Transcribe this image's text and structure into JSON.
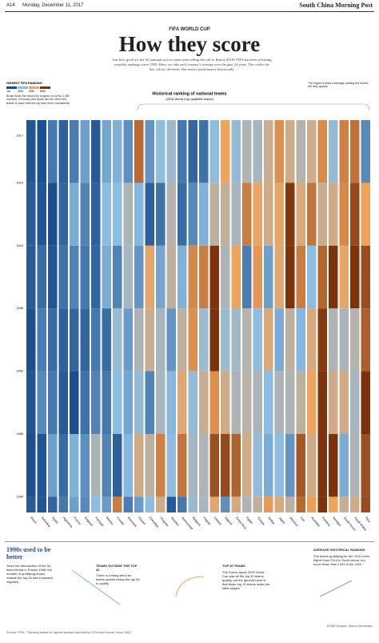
{
  "header": {
    "page": "A14",
    "date": "Monday, December 11, 2017",
    "paper": "South China Morning Post"
  },
  "kicker": "FIFA WORLD CUP",
  "headline": "How they score",
  "intro": "Just how good are the 32 national soccer teams unravelling the call to Russia 2018? FIFA has been releasing monthly rankings since 1993. Here, we take each country's average over the past 24 years. The cooler the box colour, the better that team's performance historically.",
  "chart_data": {
    "type": "heatmap",
    "title": "Historical ranking of national teams",
    "subtitle": "(2018 World Cup qualified teams)",
    "legend": {
      "title": "HIGHEST FIFA RANKING",
      "ticks": [
        {
          "value": 1,
          "label": "1st"
        },
        {
          "value": 20,
          "label": "20th"
        },
        {
          "value": 50,
          "label": "50th"
        },
        {
          "value": 80,
          "label": "80th"
        }
      ],
      "colors": [
        "#1b4f8f",
        "#8dbde2",
        "#f0a35a",
        "#7e320c"
      ]
    },
    "legend_note": "Brazil holds the record for longest run at No 1 (86 months). Germany and Spain are the other two teams to have held the top spot more consistently",
    "order_note": "The higher a team's average ranking the further left they appear",
    "categories": [
      2017,
      2014,
      2010,
      2006,
      2002,
      1998,
      1994
    ],
    "ylim": [
      2018,
      1993
    ],
    "series": [
      {
        "name": "Brazil",
        "values": [
          2,
          3,
          3,
          1,
          2,
          1,
          3
        ]
      },
      {
        "name": "Germany",
        "values": [
          1,
          2,
          6,
          9,
          11,
          2,
          2
        ]
      },
      {
        "name": "Spain",
        "values": [
          8,
          1,
          2,
          6,
          8,
          15,
          5
        ]
      },
      {
        "name": "Argentina",
        "values": [
          4,
          5,
          7,
          4,
          3,
          6,
          8
        ]
      },
      {
        "name": "France",
        "values": [
          9,
          17,
          10,
          5,
          1,
          18,
          15
        ]
      },
      {
        "name": "England",
        "values": [
          15,
          10,
          8,
          5,
          7,
          12,
          11
        ]
      },
      {
        "name": "Portugal",
        "values": [
          3,
          4,
          5,
          8,
          10,
          30,
          20
        ]
      },
      {
        "name": "Mexico",
        "values": [
          16,
          20,
          17,
          6,
          8,
          10,
          14
        ]
      },
      {
        "name": "Croatia",
        "values": [
          18,
          20,
          10,
          24,
          20,
          4,
          60
        ]
      },
      {
        "name": "Denmark",
        "values": [
          12,
          30,
          27,
          14,
          16,
          19,
          9
        ]
      },
      {
        "name": "Russia",
        "values": [
          65,
          19,
          13,
          30,
          23,
          40,
          14
        ]
      },
      {
        "name": "Colombia",
        "values": [
          13,
          4,
          46,
          38,
          10,
          34,
          21
        ]
      },
      {
        "name": "Uruguay",
        "values": [
          21,
          7,
          16,
          28,
          28,
          59,
          40
        ]
      },
      {
        "name": "Sweden",
        "values": [
          25,
          32,
          35,
          13,
          19,
          21,
          3
        ]
      },
      {
        "name": "Switzerland",
        "values": [
          8,
          6,
          18,
          35,
          45,
          62,
          8
        ]
      },
      {
        "name": "Belgium",
        "values": [
          5,
          11,
          57,
          55,
          22,
          27,
          24
        ]
      },
      {
        "name": "Poland",
        "values": [
          7,
          18,
          60,
          24,
          38,
          30,
          28
        ]
      },
      {
        "name": "Iceland",
        "values": [
          21,
          35,
          112,
          95,
          55,
          72,
          45
        ]
      },
      {
        "name": "Nigeria",
        "values": [
          50,
          36,
          30,
          24,
          40,
          74,
          12
        ]
      },
      {
        "name": "Costa Rica",
        "values": [
          23,
          28,
          50,
          26,
          30,
          67,
          42
        ]
      },
      {
        "name": "Egypt",
        "values": [
          30,
          60,
          9,
          32,
          33,
          40,
          30
        ]
      },
      {
        "name": "Tunisia",
        "values": [
          28,
          48,
          53,
          21,
          29,
          22,
          35
        ]
      },
      {
        "name": "Serbia",
        "values": [
          38,
          40,
          15,
          43,
          20,
          17,
          52
        ]
      },
      {
        "name": "Japan",
        "values": [
          55,
          47,
          45,
          17,
          30,
          20,
          43
        ]
      },
      {
        "name": "Morocco",
        "values": [
          40,
          79,
          80,
          35,
          30,
          13,
          34
        ]
      },
      {
        "name": "Iran",
        "values": [
          32,
          43,
          60,
          19,
          35,
          70,
          65
        ]
      },
      {
        "name": "Australia",
        "values": [
          39,
          62,
          20,
          42,
          50,
          40,
          51
        ]
      },
      {
        "name": "Panama",
        "values": [
          56,
          38,
          66,
          78,
          120,
          125,
          90
        ]
      },
      {
        "name": "Senegal",
        "values": [
          23,
          40,
          90,
          30,
          40,
          85,
          50
        ]
      },
      {
        "name": "South Korea",
        "values": [
          59,
          57,
          47,
          29,
          40,
          17,
          37
        ]
      },
      {
        "name": "Saudi Arabia",
        "values": [
          63,
          74,
          80,
          32,
          28,
          30,
          40
        ]
      },
      {
        "name": "Peru",
        "values": [
          11,
          50,
          73,
          68,
          80,
          72,
          73
        ]
      }
    ]
  },
  "panel": {
    "title": "1990s used to be better",
    "body": "Since the introduction of the 32-team format in France 1998, the number of qualifying teams outside the top 50 has increased regularly",
    "outside_title": "TEAMS OUTSIDE THE TOP 20",
    "outside_body": "There is a rising trend for teams ranked below the top 50 to qualify",
    "top_title": "TOP 20 TEAMS",
    "top_body": "The Korea-Japan 2002 World Cup saw all the top 20 teams qualify, but the general trend is that fewer top 20 teams make the latter stages",
    "avg_title": "AVERAGE HISTORICAL RANKING",
    "avg_body": "The teams qualifying for the 2010 event higher than 2014 in South Africa, but much fewer than 1994 in the USA"
  },
  "footer": {
    "source": "Source: FIFA. * Ranking based on highest position reported by FIFA each month, since 1993.",
    "credit": "SCMP Graphic: Marco Hernandez"
  }
}
